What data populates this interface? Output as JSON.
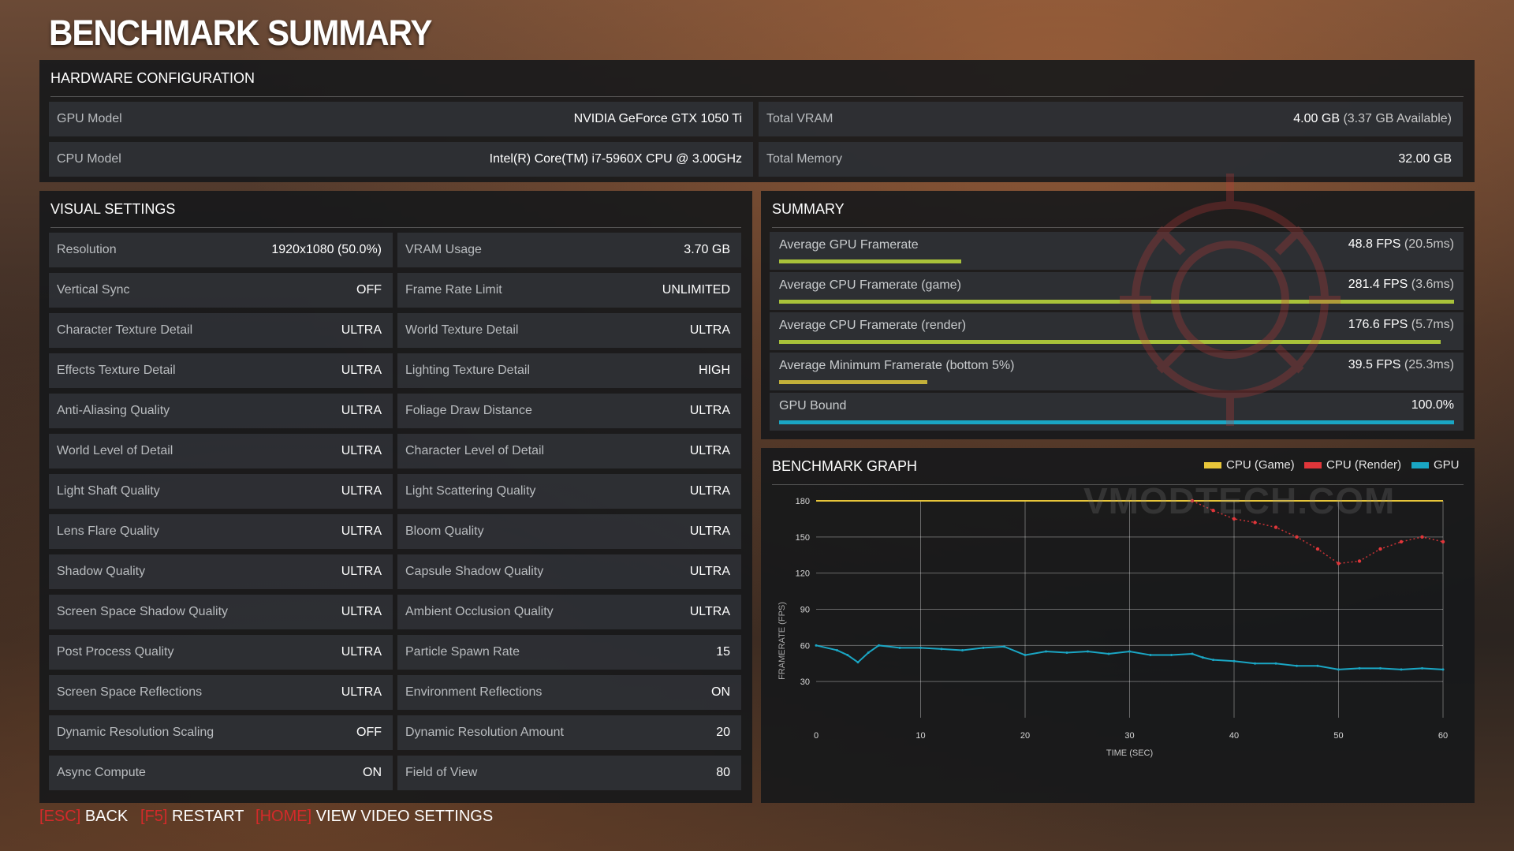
{
  "page_title": "BENCHMARK SUMMARY",
  "hardware": {
    "heading": "HARDWARE CONFIGURATION",
    "items": [
      {
        "label": "GPU Model",
        "value": "NVIDIA GeForce GTX 1050 Ti"
      },
      {
        "label": "Total VRAM",
        "value": "4.00 GB",
        "value_extra": "(3.37 GB Available)"
      },
      {
        "label": "CPU Model",
        "value": "Intel(R) Core(TM) i7-5960X CPU @ 3.00GHz"
      },
      {
        "label": "Total Memory",
        "value": "32.00 GB"
      }
    ]
  },
  "visual_settings": {
    "heading": "VISUAL SETTINGS",
    "left": [
      {
        "label": "Resolution",
        "value": "1920x1080 (50.0%)"
      },
      {
        "label": "Vertical Sync",
        "value": "OFF"
      },
      {
        "label": "Character Texture Detail",
        "value": "ULTRA"
      },
      {
        "label": "Effects Texture Detail",
        "value": "ULTRA"
      },
      {
        "label": "Anti-Aliasing Quality",
        "value": "ULTRA"
      },
      {
        "label": "World Level of Detail",
        "value": "ULTRA"
      },
      {
        "label": "Light Shaft Quality",
        "value": "ULTRA"
      },
      {
        "label": "Lens Flare Quality",
        "value": "ULTRA"
      },
      {
        "label": "Shadow Quality",
        "value": "ULTRA"
      },
      {
        "label": "Screen Space Shadow Quality",
        "value": "ULTRA"
      },
      {
        "label": "Post Process Quality",
        "value": "ULTRA"
      },
      {
        "label": "Screen Space Reflections",
        "value": "ULTRA"
      },
      {
        "label": "Dynamic Resolution Scaling",
        "value": "OFF"
      },
      {
        "label": "Async Compute",
        "value": "ON"
      }
    ],
    "right": [
      {
        "label": "VRAM Usage",
        "value": "3.70 GB"
      },
      {
        "label": "Frame Rate Limit",
        "value": "UNLIMITED"
      },
      {
        "label": "World Texture Detail",
        "value": "ULTRA"
      },
      {
        "label": "Lighting Texture Detail",
        "value": "HIGH"
      },
      {
        "label": "Foliage Draw Distance",
        "value": "ULTRA"
      },
      {
        "label": "Character Level of Detail",
        "value": "ULTRA"
      },
      {
        "label": "Light Scattering Quality",
        "value": "ULTRA"
      },
      {
        "label": "Bloom Quality",
        "value": "ULTRA"
      },
      {
        "label": "Capsule Shadow Quality",
        "value": "ULTRA"
      },
      {
        "label": "Ambient Occlusion Quality",
        "value": "ULTRA"
      },
      {
        "label": "Particle Spawn Rate",
        "value": "15"
      },
      {
        "label": "Environment Reflections",
        "value": "ON"
      },
      {
        "label": "Dynamic Resolution Amount",
        "value": "20"
      },
      {
        "label": "Field of View",
        "value": "80"
      }
    ]
  },
  "summary": {
    "heading": "SUMMARY",
    "items": [
      {
        "label": "Average GPU Framerate",
        "value": "48.8 FPS",
        "value_extra": "(20.5ms)",
        "bar_fraction": 0.27,
        "bar_color": "#a9c23a"
      },
      {
        "label": "Average CPU Framerate (game)",
        "value": "281.4 FPS",
        "value_extra": "(3.6ms)",
        "bar_fraction": 1.0,
        "bar_color": "#a9c23a"
      },
      {
        "label": "Average CPU Framerate (render)",
        "value": "176.6 FPS",
        "value_extra": "(5.7ms)",
        "bar_fraction": 0.98,
        "bar_color": "#a9c23a"
      },
      {
        "label": "Average Minimum Framerate (bottom 5%)",
        "value": "39.5 FPS",
        "value_extra": "(25.3ms)",
        "bar_fraction": 0.22,
        "bar_color": "#c2b03a"
      },
      {
        "label": "GPU Bound",
        "value": "100.0%",
        "value_extra": "",
        "bar_fraction": 1.0,
        "bar_color": "#1aa6c4"
      }
    ]
  },
  "graph": {
    "heading": "BENCHMARK GRAPH",
    "legend": [
      {
        "name": "CPU (Game)",
        "color": "#e8c63a"
      },
      {
        "name": "CPU (Render)",
        "color": "#e0363a"
      },
      {
        "name": "GPU",
        "color": "#1aa6c4"
      }
    ]
  },
  "chart_data": {
    "type": "scatter",
    "title": "",
    "xlabel": "TIME (SEC)",
    "ylabel": "FRAMERATE (FPS)",
    "xlim": [
      0,
      60
    ],
    "ylim": [
      0,
      180
    ],
    "x_ticks": [
      0,
      10,
      20,
      30,
      40,
      50,
      60
    ],
    "y_ticks": [
      30,
      60,
      90,
      120,
      150,
      180
    ],
    "grid": true,
    "legend_position": "top-right",
    "series": [
      {
        "name": "CPU (Game)",
        "color": "#e8c63a",
        "x": [
          0,
          60
        ],
        "y": [
          180,
          180
        ]
      },
      {
        "name": "CPU (Render)",
        "color": "#e0363a",
        "x": [
          36,
          38,
          40,
          42,
          44,
          46,
          48,
          50,
          52,
          54,
          56,
          58,
          60
        ],
        "y": [
          180,
          172,
          165,
          162,
          158,
          150,
          140,
          128,
          130,
          140,
          146,
          150,
          146
        ]
      },
      {
        "name": "GPU",
        "color": "#1aa6c4",
        "x": [
          0,
          2,
          3,
          4,
          5,
          6,
          8,
          10,
          12,
          14,
          16,
          18,
          20,
          22,
          24,
          26,
          28,
          30,
          32,
          34,
          36,
          37,
          38,
          40,
          42,
          44,
          46,
          48,
          50,
          52,
          54,
          56,
          58,
          60
        ],
        "y": [
          60,
          56,
          52,
          46,
          54,
          60,
          58,
          58,
          57,
          56,
          58,
          59,
          52,
          55,
          54,
          55,
          53,
          55,
          52,
          52,
          53,
          50,
          48,
          47,
          45,
          45,
          43,
          43,
          40,
          41,
          41,
          40,
          41,
          40
        ]
      }
    ]
  },
  "footer": [
    {
      "key": "ESC",
      "action": "BACK"
    },
    {
      "key": "F5",
      "action": "RESTART"
    },
    {
      "key": "HOME",
      "action": "VIEW VIDEO SETTINGS"
    }
  ],
  "watermark": "VMODTECH.COM"
}
